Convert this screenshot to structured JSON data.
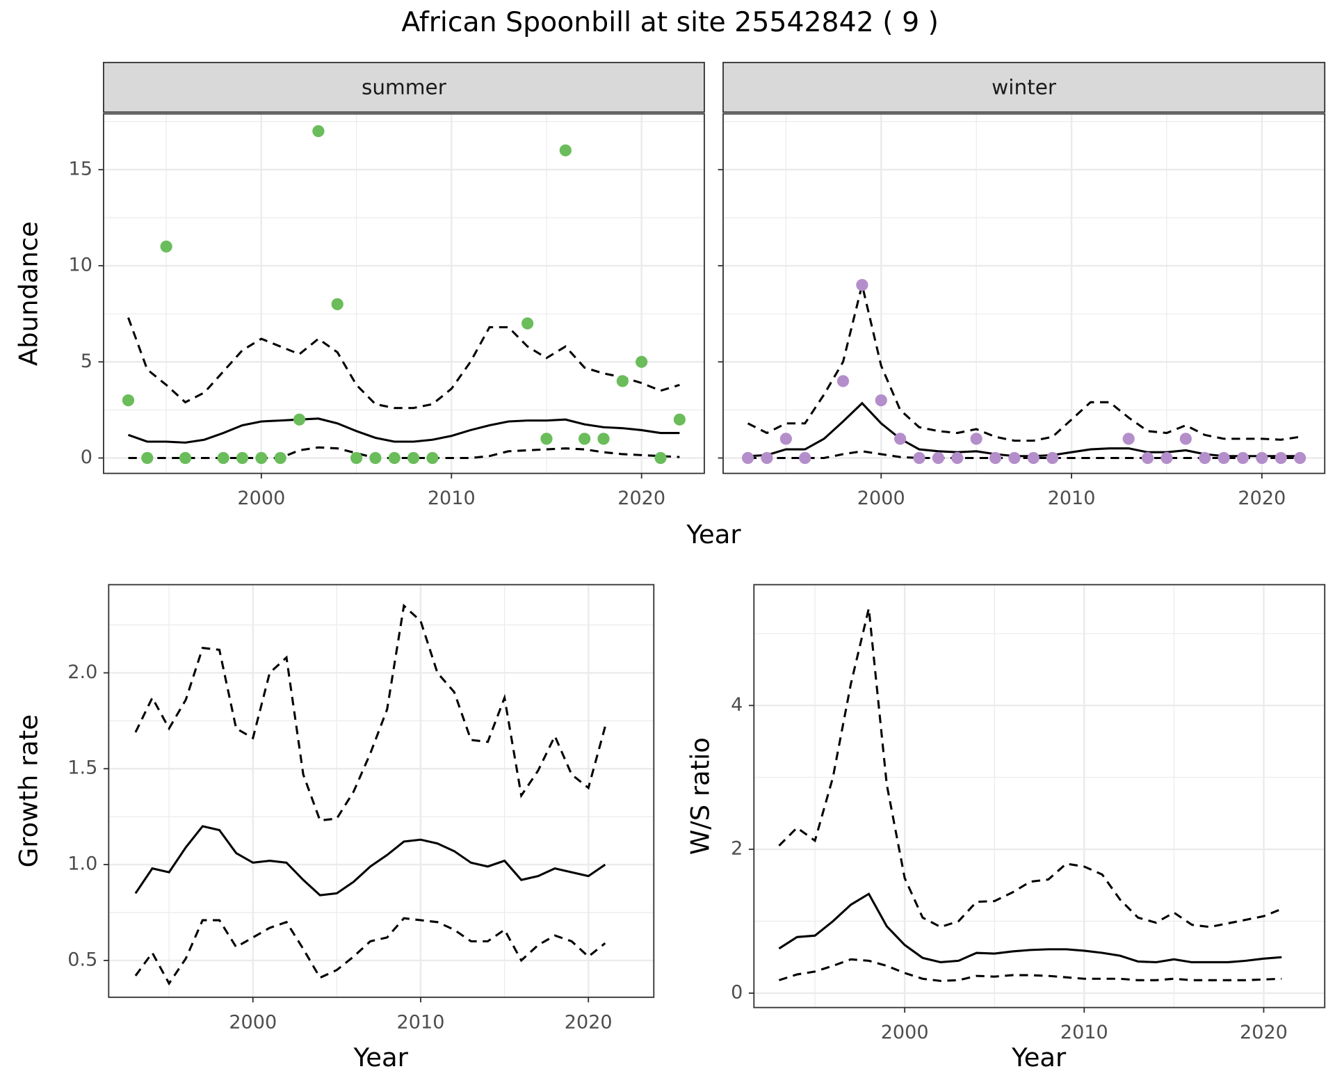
{
  "title": "African Spoonbill at site 25542842 ( 9 )",
  "chart_data": [
    {
      "type": "line",
      "x_label": "Year",
      "y_label": "Abundance",
      "xlim": [
        1991.7,
        2023.3
      ],
      "ylim": [
        -0.8,
        17.9
      ],
      "xticks": [
        2000,
        2010,
        2020
      ],
      "yticks": [
        0,
        5,
        10,
        15
      ],
      "grid": true,
      "facets": [
        {
          "strip": "summer",
          "x": [
            1993,
            1994,
            1995,
            1996,
            1997,
            1998,
            1999,
            2000,
            2001,
            2002,
            2003,
            2004,
            2005,
            2006,
            2007,
            2008,
            2009,
            2010,
            2011,
            2012,
            2013,
            2014,
            2015,
            2016,
            2017,
            2018,
            2019,
            2020,
            2021,
            2022
          ],
          "series": [
            {
              "style": "solid",
              "color": "#000000",
              "values": [
                1.2,
                0.85,
                0.85,
                0.8,
                0.95,
                1.3,
                1.7,
                1.9,
                1.95,
                2.0,
                2.05,
                1.8,
                1.4,
                1.05,
                0.85,
                0.85,
                0.95,
                1.15,
                1.45,
                1.7,
                1.9,
                1.95,
                1.95,
                2.0,
                1.75,
                1.6,
                1.55,
                1.45,
                1.3,
                1.3
              ]
            },
            {
              "style": "dashed",
              "color": "#000000",
              "values": [
                7.3,
                4.6,
                3.8,
                2.9,
                3.4,
                4.5,
                5.6,
                6.2,
                5.8,
                5.4,
                6.2,
                5.5,
                3.8,
                2.8,
                2.6,
                2.6,
                2.8,
                3.6,
                5.0,
                6.8,
                6.8,
                5.8,
                5.2,
                5.8,
                4.7,
                4.4,
                4.2,
                3.9,
                3.5,
                3.8
              ]
            },
            {
              "style": "dashed",
              "color": "#000000",
              "values": [
                0,
                0,
                0,
                0,
                0,
                0,
                0,
                0,
                0,
                0.4,
                0.55,
                0.5,
                0.25,
                0,
                0,
                0,
                0,
                0,
                0,
                0.1,
                0.35,
                0.4,
                0.45,
                0.5,
                0.45,
                0.3,
                0.2,
                0.15,
                0.1,
                0.05
              ]
            }
          ],
          "points": {
            "color": "#6abd5a",
            "x": [
              1993,
              1994,
              1995,
              1996,
              1998,
              1999,
              2000,
              2001,
              2002,
              2003,
              2004,
              2005,
              2006,
              2007,
              2008,
              2009,
              2014,
              2015,
              2016,
              2017,
              2018,
              2019,
              2020,
              2021,
              2022
            ],
            "values": [
              3,
              0,
              11,
              0,
              0,
              0,
              0,
              0,
              2,
              17,
              8,
              0,
              0,
              0,
              0,
              0,
              7,
              1,
              16,
              1,
              1,
              4,
              5,
              0,
              2
            ]
          }
        },
        {
          "strip": "winter",
          "x": [
            1993,
            1994,
            1995,
            1996,
            1997,
            1998,
            1999,
            2000,
            2001,
            2002,
            2003,
            2004,
            2005,
            2006,
            2007,
            2008,
            2009,
            2010,
            2011,
            2012,
            2013,
            2014,
            2015,
            2016,
            2017,
            2018,
            2019,
            2020,
            2021,
            2022
          ],
          "series": [
            {
              "style": "solid",
              "color": "#000000",
              "values": [
                0.1,
                0.15,
                0.45,
                0.45,
                1.0,
                1.9,
                2.85,
                1.8,
                1.0,
                0.45,
                0.35,
                0.3,
                0.35,
                0.2,
                0.1,
                0.1,
                0.15,
                0.3,
                0.45,
                0.5,
                0.5,
                0.3,
                0.3,
                0.4,
                0.2,
                0.1,
                0.1,
                0.1,
                0.1,
                0.1
              ]
            },
            {
              "style": "dashed",
              "color": "#000000",
              "values": [
                1.8,
                1.3,
                1.8,
                1.8,
                3.3,
                5.0,
                9.0,
                4.8,
                2.5,
                1.6,
                1.4,
                1.3,
                1.5,
                1.1,
                0.9,
                0.9,
                1.1,
                2.0,
                2.9,
                2.9,
                2.1,
                1.4,
                1.3,
                1.7,
                1.2,
                1.0,
                1.0,
                1.0,
                0.95,
                1.1
              ]
            },
            {
              "style": "dashed",
              "color": "#000000",
              "values": [
                0,
                0,
                0,
                0,
                0,
                0.2,
                0.35,
                0.2,
                0.05,
                0,
                0,
                0,
                0,
                0,
                0,
                0,
                0,
                0,
                0,
                0,
                0,
                0,
                0,
                0,
                0,
                0,
                0,
                0,
                0,
                0
              ]
            }
          ],
          "points": {
            "color": "#b48ecb",
            "x": [
              1993,
              1994,
              1995,
              1996,
              1998,
              1999,
              2000,
              2001,
              2002,
              2003,
              2004,
              2005,
              2006,
              2007,
              2008,
              2009,
              2013,
              2014,
              2015,
              2016,
              2017,
              2018,
              2019,
              2020,
              2021,
              2022
            ],
            "values": [
              0,
              0,
              1,
              0,
              4,
              9,
              3,
              1,
              0,
              0,
              0,
              1,
              0,
              0,
              0,
              0,
              1,
              0,
              0,
              1,
              0,
              0,
              0,
              0,
              0,
              0
            ]
          }
        }
      ]
    },
    {
      "type": "line",
      "x_label": "Year",
      "y_label": "Growth rate",
      "xlim": [
        1991.4,
        2023.9
      ],
      "ylim": [
        0.308,
        2.46
      ],
      "xticks": [
        2000,
        2010,
        2020
      ],
      "yticks": [
        0.5,
        {
          "value": 1.0,
          "label": "1.0"
        },
        1.5,
        {
          "value": 2.0,
          "label": "2.0"
        }
      ],
      "grid": true,
      "x": [
        1993,
        1994,
        1995,
        1996,
        1997,
        1998,
        1999,
        2000,
        2001,
        2002,
        2003,
        2004,
        2005,
        2006,
        2007,
        2008,
        2009,
        2010,
        2011,
        2012,
        2013,
        2014,
        2015,
        2016,
        2017,
        2018,
        2019,
        2020,
        2021
      ],
      "series": [
        {
          "style": "solid",
          "color": "#000000",
          "values": [
            0.85,
            0.98,
            0.96,
            1.09,
            1.2,
            1.18,
            1.06,
            1.01,
            1.02,
            1.01,
            0.92,
            0.84,
            0.85,
            0.91,
            0.99,
            1.05,
            1.12,
            1.13,
            1.11,
            1.07,
            1.01,
            0.99,
            1.02,
            0.92,
            0.94,
            0.98,
            0.96,
            0.94,
            1.0
          ]
        },
        {
          "style": "dashed",
          "color": "#000000",
          "values": [
            1.69,
            1.87,
            1.71,
            1.86,
            2.13,
            2.12,
            1.71,
            1.66,
            2.0,
            2.08,
            1.47,
            1.23,
            1.24,
            1.38,
            1.58,
            1.81,
            2.35,
            2.27,
            2.0,
            1.9,
            1.65,
            1.64,
            1.87,
            1.36,
            1.49,
            1.67,
            1.47,
            1.4,
            1.72
          ]
        },
        {
          "style": "dashed",
          "color": "#000000",
          "values": [
            0.42,
            0.54,
            0.38,
            0.51,
            0.71,
            0.71,
            0.57,
            0.62,
            0.67,
            0.7,
            0.56,
            0.41,
            0.45,
            0.52,
            0.6,
            0.62,
            0.72,
            0.71,
            0.7,
            0.66,
            0.6,
            0.6,
            0.66,
            0.5,
            0.58,
            0.63,
            0.6,
            0.52,
            0.59
          ]
        }
      ]
    },
    {
      "type": "line",
      "x_label": "Year",
      "y_label": "W/S ratio",
      "xlim": [
        1991.6,
        2023.4
      ],
      "ylim": [
        -0.2,
        5.68
      ],
      "xticks": [
        2000,
        2010,
        2020
      ],
      "yticks": [
        0,
        2,
        4
      ],
      "grid": true,
      "x": [
        1993,
        1994,
        1995,
        1996,
        1997,
        1998,
        1999,
        2000,
        2001,
        2002,
        2003,
        2004,
        2005,
        2006,
        2007,
        2008,
        2009,
        2010,
        2011,
        2012,
        2013,
        2014,
        2015,
        2016,
        2017,
        2018,
        2019,
        2020,
        2021
      ],
      "series": [
        {
          "style": "solid",
          "color": "#000000",
          "values": [
            0.62,
            0.78,
            0.8,
            1.0,
            1.23,
            1.38,
            0.93,
            0.67,
            0.49,
            0.43,
            0.45,
            0.56,
            0.55,
            0.58,
            0.6,
            0.61,
            0.61,
            0.59,
            0.56,
            0.52,
            0.44,
            0.43,
            0.47,
            0.43,
            0.43,
            0.43,
            0.45,
            0.48,
            0.5
          ]
        },
        {
          "style": "dashed",
          "color": "#000000",
          "values": [
            2.05,
            2.3,
            2.12,
            3.0,
            4.3,
            5.35,
            2.9,
            1.6,
            1.05,
            0.92,
            1.0,
            1.27,
            1.28,
            1.4,
            1.55,
            1.58,
            1.8,
            1.76,
            1.65,
            1.3,
            1.05,
            0.98,
            1.12,
            0.95,
            0.92,
            0.97,
            1.02,
            1.07,
            1.17
          ]
        },
        {
          "style": "dashed",
          "color": "#000000",
          "values": [
            0.18,
            0.26,
            0.3,
            0.38,
            0.47,
            0.45,
            0.38,
            0.28,
            0.2,
            0.17,
            0.18,
            0.24,
            0.23,
            0.25,
            0.25,
            0.24,
            0.22,
            0.2,
            0.2,
            0.2,
            0.18,
            0.18,
            0.2,
            0.18,
            0.18,
            0.18,
            0.18,
            0.19,
            0.2
          ]
        }
      ]
    }
  ]
}
